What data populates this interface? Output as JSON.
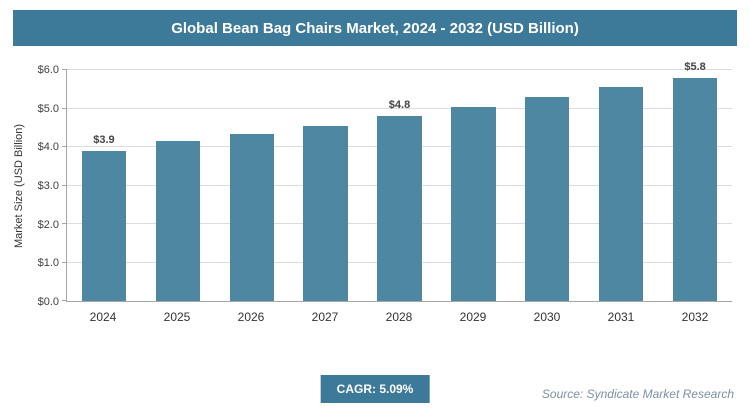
{
  "header": {
    "title": "Global Bean Bag Chairs Market, 2024 - 2032 (USD Billion)"
  },
  "chart_data": {
    "type": "bar",
    "title": "Global Bean Bag Chairs Market, 2024 - 2032 (USD Billion)",
    "categories": [
      "2024",
      "2025",
      "2026",
      "2027",
      "2028",
      "2029",
      "2030",
      "2031",
      "2032"
    ],
    "values": [
      3.9,
      4.15,
      4.35,
      4.55,
      4.8,
      5.05,
      5.3,
      5.55,
      5.8
    ],
    "point_labels": [
      "$3.9",
      "",
      "",
      "",
      "$4.8",
      "",
      "",
      "",
      "$5.8"
    ],
    "xlabel": "",
    "ylabel": "Market Size (USD Billion)",
    "ylim": [
      0,
      6
    ],
    "yticks": [
      "$0.0",
      "$1.0",
      "$2.0",
      "$3.0",
      "$4.0",
      "$5.0",
      "$6.0"
    ],
    "grid": "horizontal",
    "legend": "none"
  },
  "footer": {
    "cagr_label": "CAGR: 5.09%",
    "source": "Source: Syndicate Market Research"
  },
  "colors": {
    "header_bg": "#3d7a99",
    "bar": "#4e87a2",
    "badge_bg": "#3d7a99",
    "source_text": "#7d8fa6"
  }
}
